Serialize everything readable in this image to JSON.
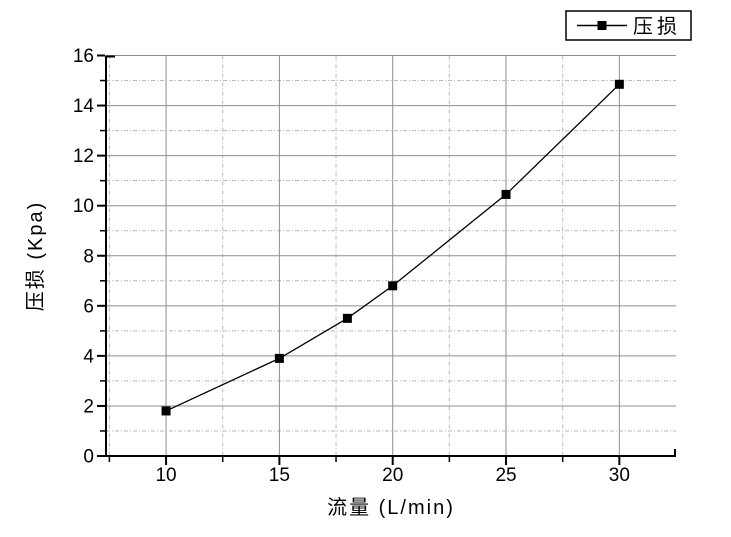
{
  "figure": {
    "background": "#ffffff",
    "text_color": "#000000"
  },
  "legend": {
    "label": "压损",
    "border_color": "#000000",
    "marker": "filled-square",
    "line_color": "#000000"
  },
  "chart_data": {
    "type": "line",
    "title": "",
    "xlabel": "流量 (L/min)",
    "ylabel": "压损 (Kpa)",
    "xlim": [
      7.35,
      32.5
    ],
    "ylim": [
      0,
      16
    ],
    "x_major_ticks": [
      10,
      15,
      20,
      25,
      30
    ],
    "x_minor_ticks": [
      7.5,
      12.5,
      17.5,
      22.5,
      27.5,
      32.5
    ],
    "y_major_ticks": [
      0,
      2,
      4,
      6,
      8,
      10,
      12,
      14,
      16
    ],
    "y_minor_ticks": [
      1,
      3,
      5,
      7,
      9,
      11,
      13,
      15
    ],
    "grid": {
      "major": true,
      "minor": true,
      "major_color": "#8f8f8f",
      "minor_color": "#b9b9b9",
      "minor_style": "dash-dot"
    },
    "legend_position": "top-right-outside",
    "series": [
      {
        "name": "压损",
        "color": "#000000",
        "marker": "filled-square",
        "x": [
          10,
          15,
          18,
          20,
          25,
          30
        ],
        "y": [
          1.8,
          3.9,
          5.5,
          6.8,
          10.45,
          14.85
        ]
      }
    ]
  }
}
